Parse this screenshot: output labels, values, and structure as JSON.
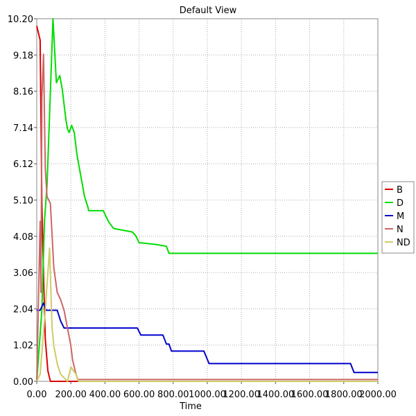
{
  "chart_data": {
    "type": "line",
    "title": "Default View",
    "xlabel": "Time",
    "ylabel": "",
    "xlim": [
      0,
      2000
    ],
    "ylim": [
      0,
      10.2
    ],
    "grid": true,
    "legend_position": "right",
    "x_ticks": [
      "0.00",
      "200.00",
      "400.00",
      "600.00",
      "800.00",
      "1000.00",
      "1200.00",
      "1400.00",
      "1600.00",
      "1800.00",
      "2000.00"
    ],
    "y_ticks": [
      "0.00",
      "1.02",
      "2.04",
      "3.06",
      "4.08",
      "5.10",
      "6.12",
      "7.14",
      "8.16",
      "9.18",
      "10.20"
    ],
    "series": [
      {
        "name": "B",
        "color": "#dd0000",
        "points": [
          [
            0,
            10.0
          ],
          [
            20,
            9.6
          ],
          [
            30,
            5.0
          ],
          [
            40,
            3.0
          ],
          [
            50,
            1.2
          ],
          [
            65,
            0.3
          ],
          [
            80,
            0.0
          ],
          [
            2000,
            0.0
          ]
        ]
      },
      {
        "name": "D",
        "color": "#00dd00",
        "points": [
          [
            0,
            0.0
          ],
          [
            15,
            1.0
          ],
          [
            30,
            2.0
          ],
          [
            45,
            4.5
          ],
          [
            60,
            5.5
          ],
          [
            75,
            7.5
          ],
          [
            95,
            10.2
          ],
          [
            115,
            8.4
          ],
          [
            135,
            8.6
          ],
          [
            150,
            8.2
          ],
          [
            170,
            7.4
          ],
          [
            180,
            7.1
          ],
          [
            190,
            7.0
          ],
          [
            205,
            7.2
          ],
          [
            220,
            7.0
          ],
          [
            235,
            6.4
          ],
          [
            250,
            6.0
          ],
          [
            265,
            5.6
          ],
          [
            280,
            5.2
          ],
          [
            300,
            4.9
          ],
          [
            305,
            4.8
          ],
          [
            350,
            4.8
          ],
          [
            390,
            4.8
          ],
          [
            400,
            4.7
          ],
          [
            420,
            4.5
          ],
          [
            450,
            4.3
          ],
          [
            560,
            4.2
          ],
          [
            580,
            4.1
          ],
          [
            600,
            3.9
          ],
          [
            700,
            3.85
          ],
          [
            760,
            3.8
          ],
          [
            775,
            3.6
          ],
          [
            800,
            3.6
          ],
          [
            2000,
            3.6
          ]
        ]
      },
      {
        "name": "M",
        "color": "#0000cc",
        "points": [
          [
            0,
            2.0
          ],
          [
            20,
            2.0
          ],
          [
            40,
            2.2
          ],
          [
            55,
            2.0
          ],
          [
            120,
            2.0
          ],
          [
            140,
            1.7
          ],
          [
            160,
            1.5
          ],
          [
            200,
            1.5
          ],
          [
            360,
            1.5
          ],
          [
            590,
            1.5
          ],
          [
            610,
            1.3
          ],
          [
            740,
            1.3
          ],
          [
            760,
            1.05
          ],
          [
            775,
            1.05
          ],
          [
            790,
            0.85
          ],
          [
            980,
            0.85
          ],
          [
            1010,
            0.5
          ],
          [
            1840,
            0.5
          ],
          [
            1860,
            0.25
          ],
          [
            2000,
            0.25
          ]
        ]
      },
      {
        "name": "N",
        "color": "#cc6666",
        "points": [
          [
            0,
            0.0
          ],
          [
            20,
            4.5
          ],
          [
            25,
            2.5
          ],
          [
            30,
            8.0
          ],
          [
            40,
            9.2
          ],
          [
            50,
            6.0
          ],
          [
            60,
            5.2
          ],
          [
            80,
            5.0
          ],
          [
            100,
            3.2
          ],
          [
            120,
            2.5
          ],
          [
            140,
            2.3
          ],
          [
            160,
            2.0
          ],
          [
            200,
            1.0
          ],
          [
            210,
            0.6
          ],
          [
            225,
            0.3
          ],
          [
            240,
            0.05
          ],
          [
            2000,
            0.05
          ]
        ]
      },
      {
        "name": "ND",
        "color": "#cccc66",
        "points": [
          [
            0,
            0.0
          ],
          [
            20,
            0.2
          ],
          [
            30,
            0.8
          ],
          [
            50,
            2.0
          ],
          [
            75,
            3.75
          ],
          [
            90,
            1.5
          ],
          [
            100,
            1.0
          ],
          [
            120,
            0.5
          ],
          [
            140,
            0.2
          ],
          [
            180,
            0.0
          ],
          [
            200,
            0.4
          ],
          [
            230,
            0.2
          ],
          [
            245,
            0.0
          ],
          [
            2000,
            0.0
          ]
        ]
      }
    ]
  }
}
